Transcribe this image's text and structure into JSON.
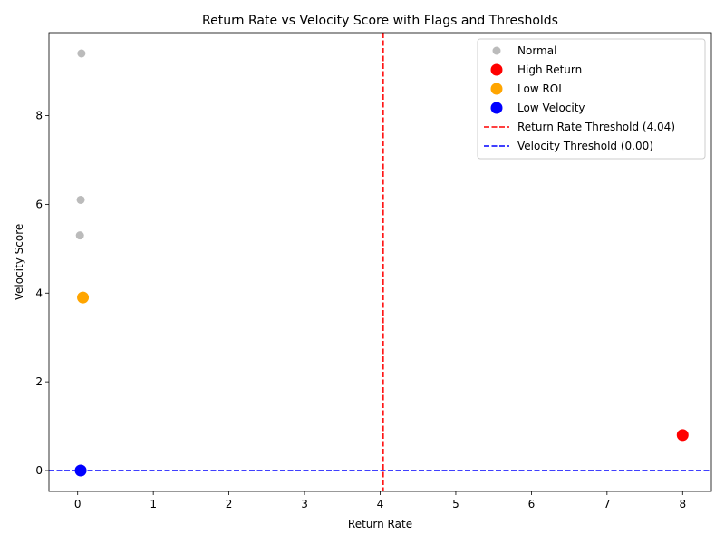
{
  "chart_data": {
    "type": "scatter",
    "title": "Return Rate vs Velocity Score with Flags and Thresholds",
    "xlabel": "Return Rate",
    "ylabel": "Velocity Score",
    "xlim": [
      -0.38,
      8.38
    ],
    "ylim": [
      -0.47,
      9.87
    ],
    "xticks": [
      "0",
      "1",
      "2",
      "3",
      "4",
      "5",
      "6",
      "7",
      "8"
    ],
    "yticks": [
      "0",
      "2",
      "4",
      "6",
      "8"
    ],
    "grid": false,
    "legend_position": "top-right",
    "series": [
      {
        "name": "Normal",
        "color": "#aaaaaa",
        "size": "small",
        "points": [
          {
            "x": 0.05,
            "y": 9.4
          },
          {
            "x": 0.04,
            "y": 6.1
          },
          {
            "x": 0.03,
            "y": 5.3
          }
        ]
      },
      {
        "name": "High Return",
        "color": "#ff0000",
        "size": "large",
        "points": [
          {
            "x": 8.0,
            "y": 0.8
          }
        ]
      },
      {
        "name": "Low ROI",
        "color": "#ffa500",
        "size": "large",
        "points": [
          {
            "x": 0.07,
            "y": 3.9
          }
        ]
      },
      {
        "name": "Low Velocity",
        "color": "#0000ff",
        "size": "large",
        "points": [
          {
            "x": 0.04,
            "y": 0.0
          }
        ]
      }
    ],
    "thresholds": [
      {
        "name": "Return Rate Threshold (4.04)",
        "axis": "x",
        "value": 4.04,
        "color": "#ff0000",
        "style": "dashed"
      },
      {
        "name": "Velocity Threshold (0.00)",
        "axis": "y",
        "value": 0.0,
        "color": "#0000ff",
        "style": "dashed"
      }
    ]
  }
}
